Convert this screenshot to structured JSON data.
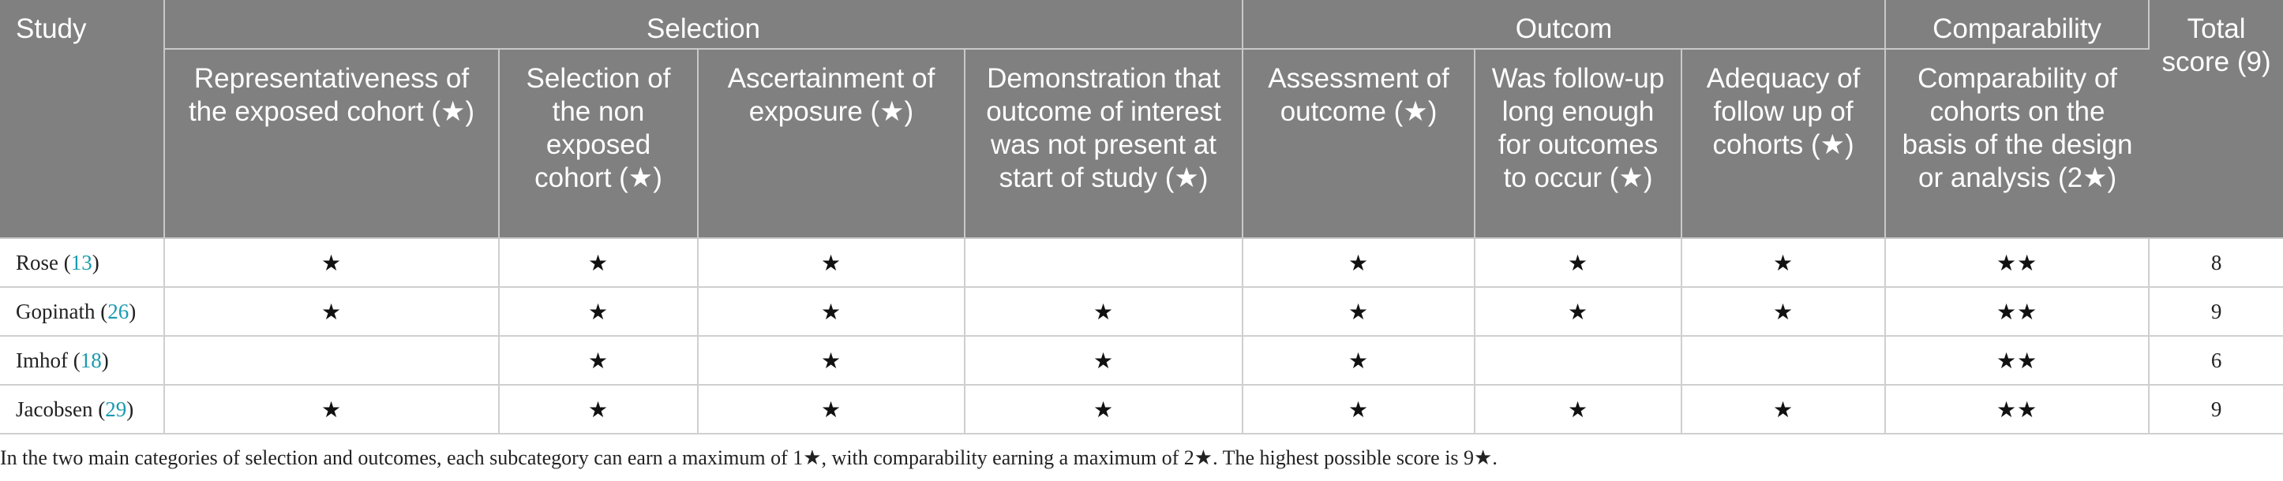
{
  "header": {
    "study": "Study",
    "groups": {
      "selection": "Selection",
      "outcome": "Outcom",
      "comparability": "Comparability",
      "total": "Total score (9)"
    },
    "subs": [
      "Representativeness of the exposed cohort (★)",
      "Selection of the non exposed cohort (★)",
      "Ascertainment of exposure (★)",
      "Demonstration that outcome of interest was not present at start of study (★)",
      "Assessment of outcome (★)",
      "Was follow-up long enough for outcomes to occur (★)",
      "Adequacy of follow up of cohorts (★)",
      "Comparability of cohorts on the basis of the design or analysis (2★)"
    ]
  },
  "rows": [
    {
      "name": "Rose (",
      "ref": "13",
      "close": ")",
      "cells": [
        "★",
        "★",
        "★",
        "",
        "★",
        "★",
        "★",
        "★★"
      ],
      "total": "8"
    },
    {
      "name": "Gopinath (",
      "ref": "26",
      "close": ")",
      "cells": [
        "★",
        "★",
        "★",
        "★",
        "★",
        "★",
        "★",
        "★★"
      ],
      "total": "9"
    },
    {
      "name": "Imhof (",
      "ref": "18",
      "close": ")",
      "cells": [
        "",
        "★",
        "★",
        "★",
        "★",
        "",
        "",
        "★★"
      ],
      "total": "6"
    },
    {
      "name": "Jacobsen (",
      "ref": "29",
      "close": ")",
      "cells": [
        "★",
        "★",
        "★",
        "★",
        "★",
        "★",
        "★",
        "★★"
      ],
      "total": "9"
    }
  ],
  "footnote": "In the two main categories of selection and outcomes, each subcategory can earn a maximum of 1★, with comparability earning a maximum of 2★. The highest possible score is 9★."
}
